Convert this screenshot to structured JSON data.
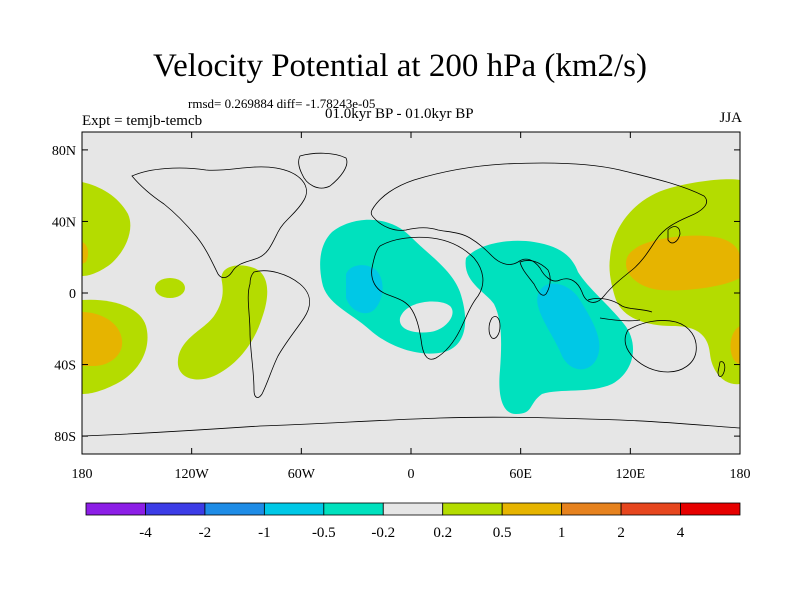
{
  "title": "Velocity Potential at 200 hPa (km2/s)",
  "stats_line": "rmsd= 0.269884 diff= -1.78243e-05",
  "period": "01.0kyr BP - 01.0kyr BP",
  "experiment": "Expt = temjb-temcb",
  "season": "JJA",
  "colors": {
    "background": "#e6e6e6",
    "coast": "#000000",
    "levels": [
      "#8c1ee6",
      "#3c3ce6",
      "#1e8ce6",
      "#00c8e6",
      "#00e1be",
      "#e6e6e6",
      "#b4dc00",
      "#e6b400",
      "#e6821e",
      "#e6461e",
      "#e60000"
    ]
  },
  "map": {
    "lat_labels": [
      "80N",
      "40N",
      "0",
      "40S",
      "80S"
    ],
    "lat_values": [
      80,
      40,
      0,
      -40,
      -80
    ],
    "lon_labels": [
      "180",
      "120W",
      "60W",
      "0",
      "60E",
      "120E",
      "180"
    ],
    "lon_values": [
      -180,
      -120,
      -60,
      0,
      60,
      120,
      180
    ]
  },
  "colorbar": {
    "labels": [
      "-4",
      "-2",
      "-1",
      "-0.5",
      "-0.2",
      "0.2",
      "0.5",
      "1",
      "2",
      "4"
    ]
  }
}
